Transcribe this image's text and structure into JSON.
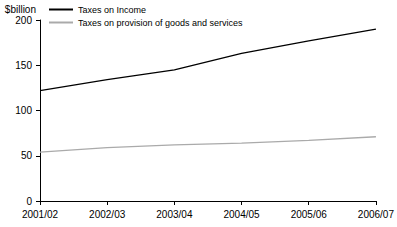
{
  "chart_data": {
    "type": "line",
    "ylabel": "$billion",
    "categories": [
      "2001/02",
      "2002/03",
      "2003/04",
      "2004/05",
      "2005/06",
      "2006/07"
    ],
    "series": [
      {
        "name": "Taxes on Income",
        "color": "#000000",
        "values": [
          122,
          134,
          145,
          163,
          177,
          190
        ]
      },
      {
        "name": "Taxes on provision of goods and services",
        "color": "#aaaaaa",
        "values": [
          54,
          59,
          62,
          64,
          67,
          71
        ]
      }
    ],
    "ylim": [
      0,
      200
    ],
    "yticks": [
      0,
      50,
      100,
      150,
      200
    ],
    "grid": false,
    "legend": "upper left"
  }
}
